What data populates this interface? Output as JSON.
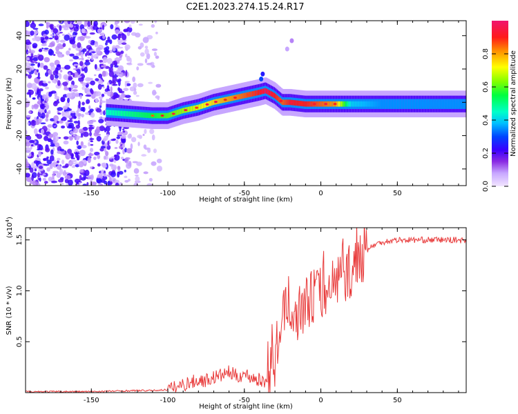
{
  "title": "C2E1.2023.274.15.24.R17",
  "colors": {
    "snr_line": "#e83a3a",
    "axis": "#000000",
    "background": "#ffffff"
  },
  "chart_data": [
    {
      "type": "heatmap",
      "title": "",
      "xlabel": "Height of straight line (km)",
      "ylabel": "Frequency (Hz)",
      "xlim": [
        -193,
        95
      ],
      "ylim": [
        -50,
        49
      ],
      "x_ticks": [
        -150,
        -100,
        -50,
        0,
        50
      ],
      "y_ticks": [
        -40,
        -20,
        0,
        20,
        40
      ],
      "colorbar": {
        "label": "Normalized spectral amplitude",
        "range": [
          0,
          1
        ],
        "ticks": [
          0.0,
          0.2,
          0.4,
          0.6,
          0.8
        ],
        "colormap": "rainbow (violet to red to magenta)"
      },
      "ridge": {
        "description": "frequency of the spectral peak versus height",
        "x": [
          -140,
          -125,
          -110,
          -100,
          -90,
          -80,
          -70,
          -60,
          -50,
          -40,
          -36,
          -30,
          -25,
          -20,
          -10,
          0,
          10,
          20,
          40,
          60,
          80,
          95
        ],
        "frequency": [
          -6,
          -7,
          -8,
          -8,
          -5,
          -3,
          0,
          2,
          4,
          6,
          7,
          4,
          0,
          0,
          -1,
          -1,
          -1,
          -1,
          -1,
          -1,
          -1,
          -1
        ],
        "peak_amplitude": [
          0.45,
          0.5,
          0.55,
          0.6,
          0.65,
          0.7,
          0.75,
          0.8,
          0.85,
          0.9,
          0.95,
          0.9,
          0.85,
          0.9,
          0.9,
          0.85,
          0.8,
          0.4,
          0.35,
          0.35,
          0.35,
          0.35
        ]
      },
      "noise_region_x_max": -125
    },
    {
      "type": "line",
      "title": "",
      "xlabel": "Height of straight line (km)",
      "ylabel": "SNR (10 * v/v)",
      "y_multiplier": "(x10",
      "y_multiplier_exp": "4",
      "y_multiplier_close": ")",
      "xlim": [
        -193,
        95
      ],
      "ylim": [
        0,
        1.62
      ],
      "x_ticks": [
        -150,
        -100,
        -50,
        0,
        50
      ],
      "y_ticks": [
        0.5,
        1.0,
        1.5
      ],
      "y_tick_labels": [
        "0.5",
        "1.0",
        "1.5"
      ],
      "series": [
        {
          "name": "",
          "x": [
            -193,
            -150,
            -120,
            -110,
            -100,
            -95,
            -90,
            -85,
            -80,
            -75,
            -70,
            -65,
            -60,
            -55,
            -50,
            -45,
            -40,
            -35,
            -32,
            -30,
            -28,
            -25,
            -22,
            -20,
            -18,
            -15,
            -12,
            -10,
            -5,
            0,
            5,
            10,
            15,
            20,
            25,
            30,
            35,
            40,
            50,
            60,
            70,
            80,
            90,
            95
          ],
          "y": [
            0.01,
            0.01,
            0.02,
            0.02,
            0.03,
            0.05,
            0.08,
            0.1,
            0.12,
            0.12,
            0.15,
            0.17,
            0.2,
            0.16,
            0.18,
            0.15,
            0.12,
            0.1,
            0.15,
            0.3,
            0.5,
            0.75,
            0.85,
            0.9,
            0.85,
            0.75,
            0.85,
            0.9,
            0.95,
            1.0,
            1.05,
            1.1,
            1.15,
            1.2,
            1.3,
            1.4,
            1.45,
            1.48,
            1.5,
            1.5,
            1.5,
            1.5,
            1.5,
            1.49
          ]
        }
      ]
    }
  ]
}
